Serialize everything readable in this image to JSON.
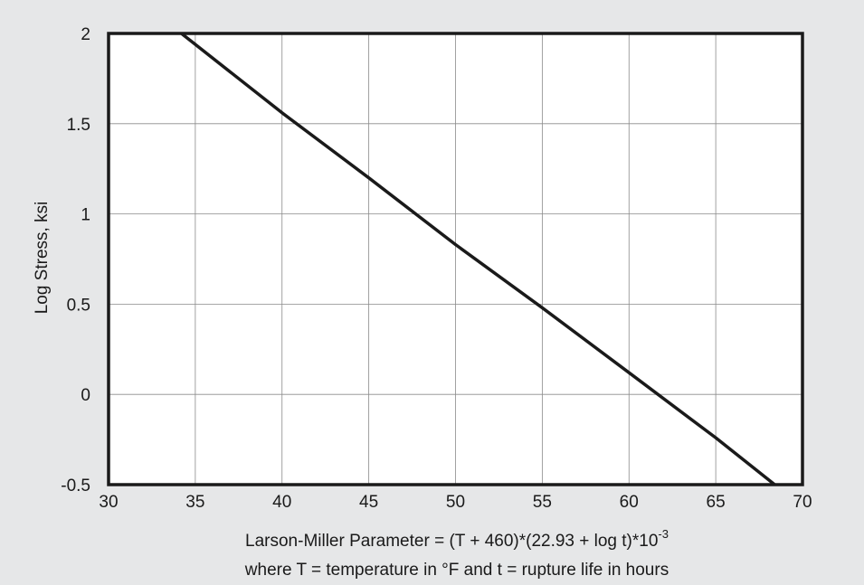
{
  "chart_data": {
    "type": "line",
    "xlim": [
      30,
      70
    ],
    "ylim": [
      -0.5,
      2
    ],
    "x_ticks": [
      30,
      35,
      40,
      45,
      50,
      55,
      60,
      65,
      70
    ],
    "y_ticks": [
      -0.5,
      0,
      0.5,
      1,
      1.5,
      2
    ],
    "x_tick_labels": [
      "30",
      "35",
      "40",
      "45",
      "50",
      "55",
      "60",
      "65",
      "70"
    ],
    "y_tick_labels": [
      "-0.5",
      "0",
      "0.5",
      "1",
      "1.5",
      "2"
    ],
    "grid": true,
    "ylabel": "Log Stress, ksi",
    "xlabel_line1_main": "Larson-Miller Parameter = (T + 460)*(22.93 + log t)*10",
    "xlabel_line1_exp": "-3",
    "xlabel_line2": "where T = temperature in °F and t = rupture life in hours",
    "series": [
      {
        "x": [
          34.2,
          40,
          45,
          50,
          55,
          60,
          65,
          68.4
        ],
        "y": [
          2.0,
          1.56,
          1.2,
          0.83,
          0.48,
          0.12,
          -0.24,
          -0.5
        ]
      }
    ],
    "colors": {
      "line": "#1a1a1a",
      "grid": "#8a8a8a",
      "plot_bg": "#ffffff",
      "page_bg": "#e6e7e8"
    }
  }
}
